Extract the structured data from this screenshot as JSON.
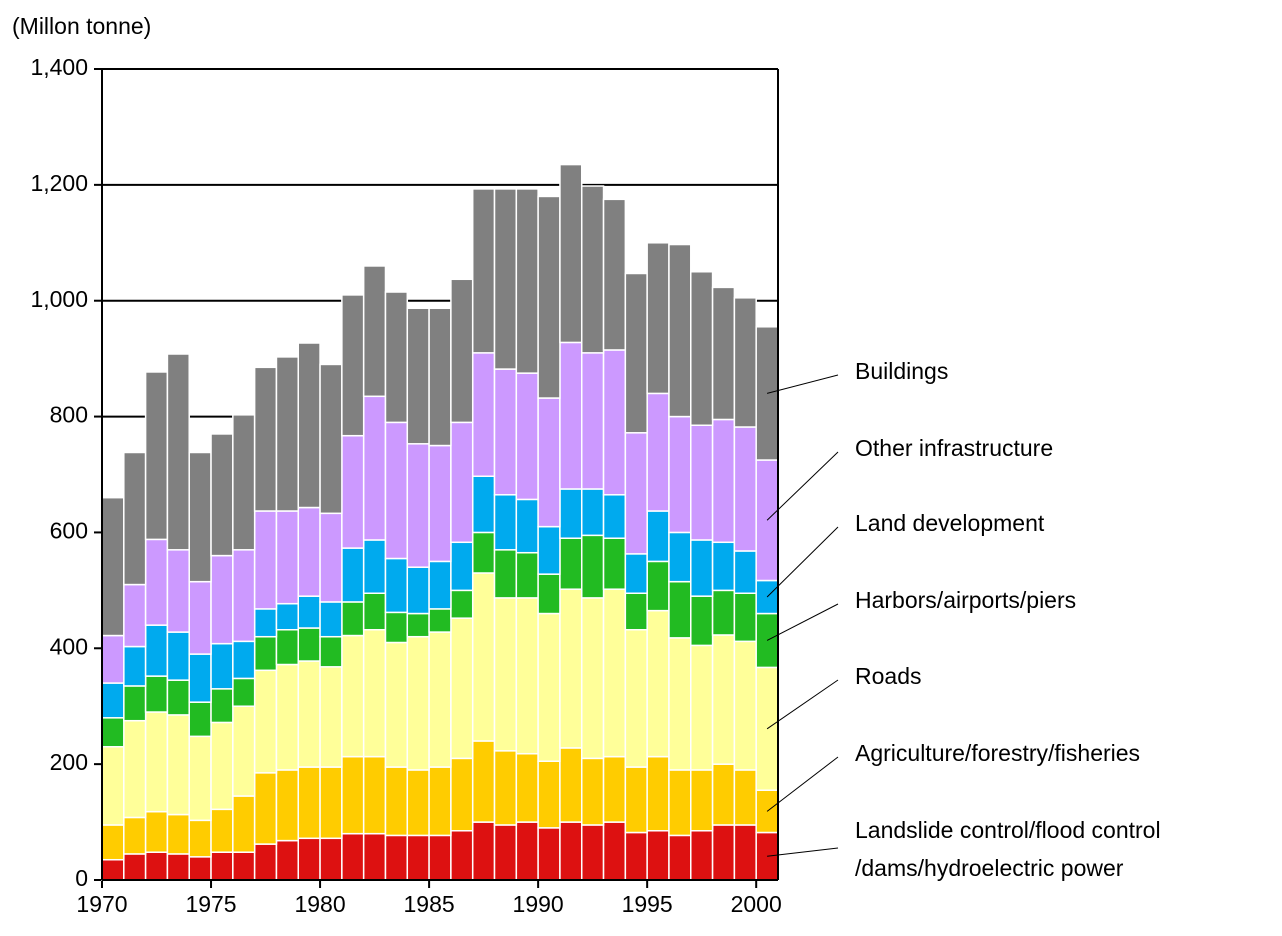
{
  "chart_data": {
    "type": "stacked_bar",
    "y_label": "(Millon tonne)",
    "x": [
      1970,
      1971,
      1972,
      1973,
      1974,
      1975,
      1976,
      1977,
      1978,
      1979,
      1980,
      1981,
      1982,
      1983,
      1984,
      1985,
      1986,
      1987,
      1988,
      1989,
      1990,
      1991,
      1992,
      1993,
      1994,
      1995,
      1996,
      1997,
      1998,
      1999,
      2000
    ],
    "xlim": [
      1970,
      2001
    ],
    "xticks": [
      1970,
      1975,
      1980,
      1985,
      1990,
      1995,
      2000
    ],
    "ylim": [
      0,
      1400
    ],
    "yticks": [
      0,
      200,
      400,
      600,
      800,
      {
        "value": 1000,
        "label": "1,000"
      },
      {
        "value": 1200,
        "label": "1,200"
      },
      {
        "value": 1400,
        "label": "1,400"
      }
    ],
    "series": [
      {
        "name": "Landslide control/flood control\n/dams/hydroelectric power",
        "color": "#dd1111",
        "values": [
          35,
          45,
          48,
          45,
          40,
          48,
          48,
          62,
          68,
          72,
          72,
          80,
          80,
          77,
          77,
          77,
          85,
          100,
          95,
          100,
          90,
          100,
          95,
          100,
          82,
          85,
          77,
          85,
          95,
          95,
          82
        ]
      },
      {
        "name": "Agriculture/forestry/fisheries",
        "color": "#ffcc00",
        "values": [
          60,
          63,
          70,
          68,
          63,
          74,
          97,
          123,
          122,
          123,
          123,
          133,
          133,
          118,
          113,
          118,
          125,
          140,
          128,
          118,
          115,
          128,
          115,
          113,
          113,
          128,
          113,
          105,
          105,
          95,
          73
        ]
      },
      {
        "name": "Roads",
        "color": "#ffff99",
        "values": [
          135,
          167,
          172,
          172,
          145,
          150,
          155,
          177,
          182,
          183,
          173,
          209,
          219,
          215,
          230,
          233,
          242,
          290,
          264,
          269,
          255,
          274,
          277,
          289,
          237,
          252,
          228,
          215,
          223,
          222,
          212
        ]
      },
      {
        "name": "Harbors/airports/piers",
        "color": "#22bb22",
        "values": [
          50,
          60,
          62,
          60,
          59,
          58,
          48,
          58,
          60,
          57,
          52,
          58,
          63,
          52,
          40,
          40,
          48,
          70,
          83,
          78,
          68,
          88,
          108,
          88,
          63,
          85,
          97,
          85,
          77,
          83,
          93
        ]
      },
      {
        "name": "Land development",
        "color": "#00aaee",
        "values": [
          60,
          68,
          88,
          83,
          83,
          78,
          64,
          48,
          45,
          55,
          60,
          93,
          92,
          93,
          80,
          82,
          83,
          97,
          95,
          92,
          82,
          85,
          80,
          75,
          68,
          87,
          85,
          97,
          83,
          73,
          57
        ]
      },
      {
        "name": "Other infrastructure",
        "color": "#cc99ff",
        "values": [
          82,
          107,
          148,
          142,
          125,
          152,
          158,
          169,
          160,
          153,
          153,
          194,
          248,
          235,
          213,
          200,
          207,
          213,
          217,
          218,
          222,
          253,
          235,
          250,
          209,
          203,
          200,
          198,
          212,
          214,
          208
        ]
      },
      {
        "name": "Buildings",
        "color": "#808080",
        "values": [
          238,
          228,
          289,
          338,
          223,
          210,
          233,
          248,
          266,
          284,
          257,
          243,
          225,
          225,
          234,
          237,
          247,
          283,
          311,
          318,
          348,
          307,
          288,
          260,
          275,
          260,
          297,
          265,
          228,
          223,
          230
        ]
      }
    ],
    "grid": true
  }
}
